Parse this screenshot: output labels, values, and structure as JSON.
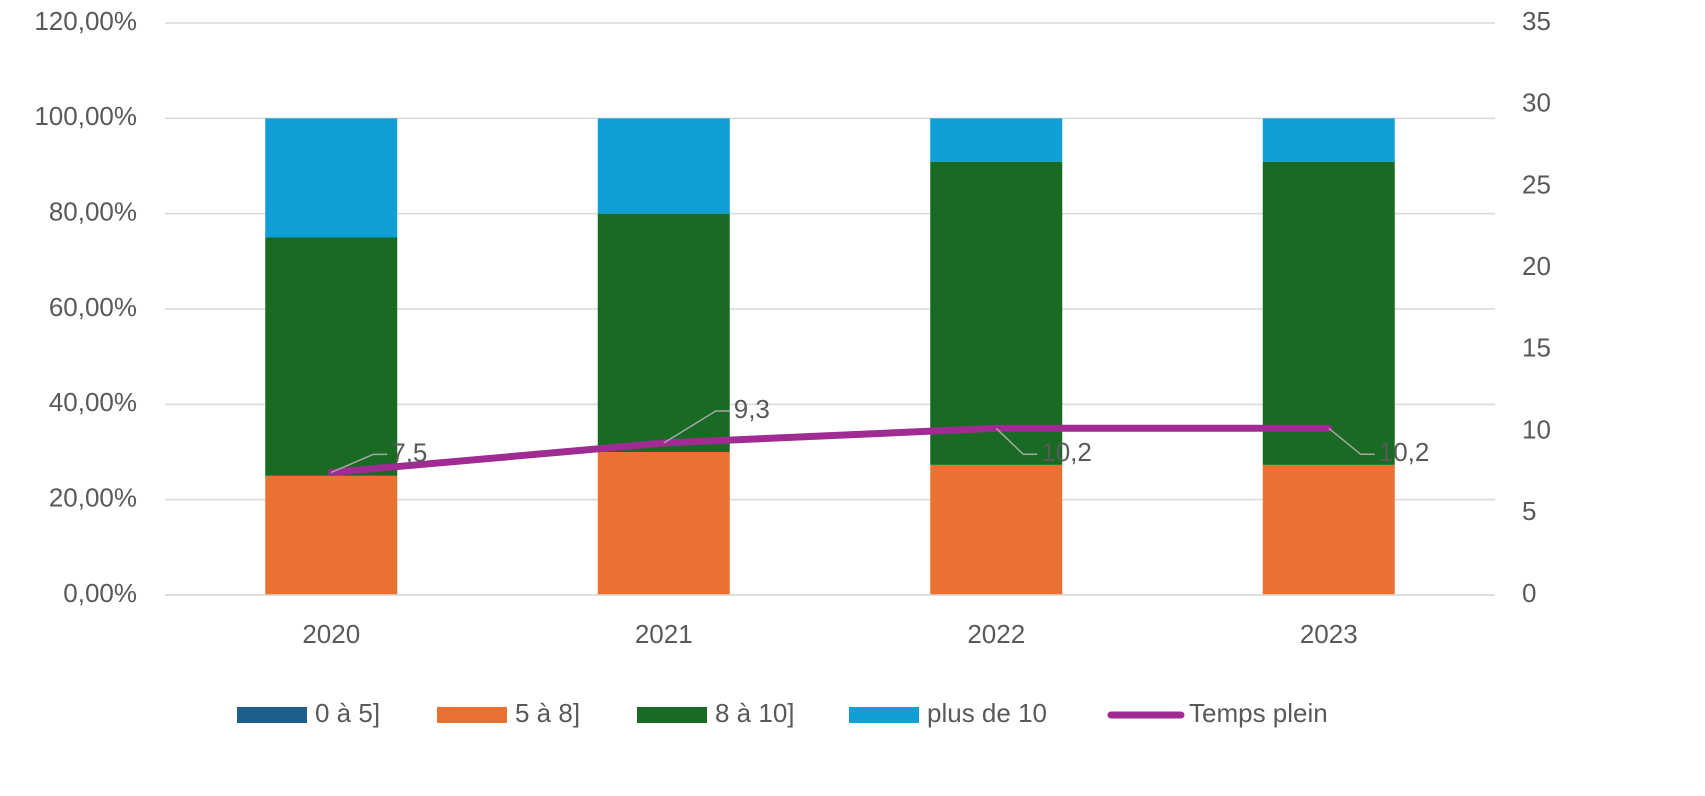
{
  "chart_data": {
    "type": "bar",
    "categories": [
      "2020",
      "2021",
      "2022",
      "2023"
    ],
    "series": [
      {
        "name": "0 à 5]",
        "type": "bar",
        "color": "#1f5f8b",
        "values": [
          0,
          0,
          0,
          0
        ]
      },
      {
        "name": "5 à 8]",
        "type": "bar",
        "color": "#e97132",
        "values": [
          25,
          30,
          27.3,
          27.3
        ]
      },
      {
        "name": "8 à 10]",
        "type": "bar",
        "color": "#196b24",
        "values": [
          50,
          50,
          63.6,
          63.6
        ]
      },
      {
        "name": "plus de 10",
        "type": "bar",
        "color": "#0f9ed5",
        "values": [
          25,
          20,
          9.1,
          9.1
        ]
      },
      {
        "name": "Temps plein",
        "type": "line",
        "axis": "y2",
        "color": "#a02b93",
        "values": [
          7.5,
          9.3,
          10.2,
          10.2
        ],
        "value_labels": [
          "7,5",
          "9,3",
          "10,2",
          "10,2"
        ]
      }
    ],
    "ylim": [
      0,
      120
    ],
    "yticks": [
      {
        "value": 0,
        "label": "0,00%"
      },
      {
        "value": 20,
        "label": "20,00%"
      },
      {
        "value": 40,
        "label": "40,00%"
      },
      {
        "value": 60,
        "label": "60,00%"
      },
      {
        "value": 80,
        "label": "80,00%"
      },
      {
        "value": 100,
        "label": "100,00%"
      },
      {
        "value": 120,
        "label": "120,00%"
      }
    ],
    "y2lim": [
      0,
      35
    ],
    "y2ticks": [
      0,
      5,
      10,
      15,
      20,
      25,
      30,
      35
    ],
    "grid": true,
    "legend": "bottom"
  }
}
